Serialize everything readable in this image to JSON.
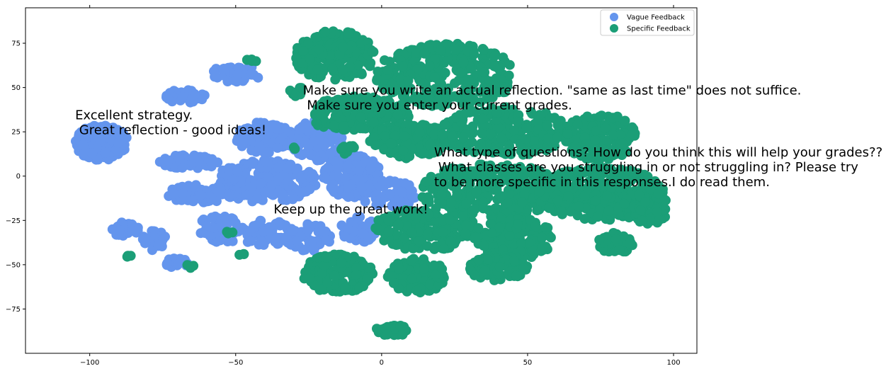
{
  "chart_data": {
    "type": "scatter",
    "title": "",
    "xlabel": "",
    "ylabel": "",
    "xlim": [
      -122,
      108
    ],
    "ylim": [
      -100,
      95
    ],
    "x_ticks": [
      -100,
      -50,
      0,
      50,
      100
    ],
    "x_tick_labels": [
      "−100",
      "−50",
      "0",
      "50",
      "100"
    ],
    "y_ticks": [
      -75,
      -50,
      -25,
      0,
      25,
      50,
      75
    ],
    "y_tick_labels": [
      "−75",
      "−50",
      "−25",
      "0",
      "25",
      "50",
      "75"
    ],
    "grid": false,
    "legend_position": "top-right",
    "series": [
      {
        "name": "Vague Feedback",
        "color": "#6495ed",
        "clusters": [
          {
            "cx": -96,
            "cy": 19,
            "rx": 9,
            "ry": 10,
            "n": 170
          },
          {
            "cx": -67,
            "cy": 45,
            "rx": 7,
            "ry": 4,
            "n": 40
          },
          {
            "cx": -50,
            "cy": 58,
            "rx": 9,
            "ry": 5,
            "n": 40
          },
          {
            "cx": -66,
            "cy": 8,
            "rx": 10,
            "ry": 4,
            "n": 55
          },
          {
            "cx": -40,
            "cy": 22,
            "rx": 10,
            "ry": 9,
            "n": 120
          },
          {
            "cx": -40,
            "cy": -3,
            "rx": 18,
            "ry": 12,
            "n": 220
          },
          {
            "cx": -62,
            "cy": -10,
            "rx": 12,
            "ry": 5,
            "n": 70
          },
          {
            "cx": -55,
            "cy": -30,
            "rx": 9,
            "ry": 8,
            "n": 55
          },
          {
            "cx": -40,
            "cy": -32,
            "rx": 10,
            "ry": 7,
            "n": 60
          },
          {
            "cx": -88,
            "cy": -30,
            "rx": 5,
            "ry": 4,
            "n": 30
          },
          {
            "cx": -78,
            "cy": -36,
            "rx": 4,
            "ry": 6,
            "n": 30
          },
          {
            "cx": -70,
            "cy": -49,
            "rx": 4,
            "ry": 3,
            "n": 25
          },
          {
            "cx": -22,
            "cy": 20,
            "rx": 9,
            "ry": 12,
            "n": 130
          },
          {
            "cx": -10,
            "cy": 0,
            "rx": 10,
            "ry": 12,
            "n": 140
          },
          {
            "cx": -25,
            "cy": -35,
            "rx": 8,
            "ry": 8,
            "n": 60
          },
          {
            "cx": -8,
            "cy": -30,
            "rx": 6,
            "ry": 8,
            "n": 50
          },
          {
            "cx": 2,
            "cy": -10,
            "rx": 10,
            "ry": 8,
            "n": 70
          }
        ]
      },
      {
        "name": "Specific Feedback",
        "color": "#1b9e77",
        "clusters": [
          {
            "cx": -16,
            "cy": 68,
            "rx": 14,
            "ry": 14,
            "n": 180
          },
          {
            "cx": 22,
            "cy": 57,
            "rx": 24,
            "ry": 18,
            "n": 300
          },
          {
            "cx": -8,
            "cy": 35,
            "rx": 18,
            "ry": 10,
            "n": 200
          },
          {
            "cx": 10,
            "cy": 20,
            "rx": 14,
            "ry": 10,
            "n": 160
          },
          {
            "cx": 42,
            "cy": 25,
            "rx": 22,
            "ry": 14,
            "n": 260
          },
          {
            "cx": 75,
            "cy": 22,
            "rx": 12,
            "ry": 14,
            "n": 160
          },
          {
            "cx": 38,
            "cy": -8,
            "rx": 25,
            "ry": 15,
            "n": 300
          },
          {
            "cx": 75,
            "cy": -10,
            "rx": 22,
            "ry": 15,
            "n": 260
          },
          {
            "cx": 92,
            "cy": -18,
            "rx": 6,
            "ry": 10,
            "n": 80
          },
          {
            "cx": 15,
            "cy": -30,
            "rx": 18,
            "ry": 12,
            "n": 220
          },
          {
            "cx": 45,
            "cy": -35,
            "rx": 14,
            "ry": 12,
            "n": 180
          },
          {
            "cx": -15,
            "cy": -55,
            "rx": 12,
            "ry": 11,
            "n": 180
          },
          {
            "cx": 12,
            "cy": -56,
            "rx": 10,
            "ry": 10,
            "n": 120
          },
          {
            "cx": 40,
            "cy": -52,
            "rx": 10,
            "ry": 7,
            "n": 90
          },
          {
            "cx": 4,
            "cy": -87,
            "rx": 6,
            "ry": 3,
            "n": 30
          },
          {
            "cx": 80,
            "cy": -38,
            "rx": 6,
            "ry": 6,
            "n": 40
          },
          {
            "cx": -45,
            "cy": 65,
            "rx": 2,
            "ry": 1,
            "n": 6
          },
          {
            "cx": -29,
            "cy": 48,
            "rx": 3,
            "ry": 3,
            "n": 10
          },
          {
            "cx": -47,
            "cy": -44,
            "rx": 2,
            "ry": 1,
            "n": 3
          },
          {
            "cx": -87,
            "cy": -45,
            "rx": 2,
            "ry": 1,
            "n": 4
          },
          {
            "cx": -66,
            "cy": -51,
            "rx": 2,
            "ry": 1,
            "n": 4
          },
          {
            "cx": -53,
            "cy": -32,
            "rx": 2,
            "ry": 1,
            "n": 4
          },
          {
            "cx": -30,
            "cy": 16,
            "rx": 1,
            "ry": 1,
            "n": 2
          },
          {
            "cx": -12,
            "cy": 15,
            "rx": 3,
            "ry": 3,
            "n": 10
          }
        ]
      }
    ],
    "annotations": [
      {
        "x": -105,
        "y": 32,
        "lines": [
          "Excellent strategy.",
          "  Great reflection - good ideas!"
        ]
      },
      {
        "x": -27,
        "y": 46,
        "lines": [
          "Make sure you write an actual reflection. \"same as last time\" does not suffice.",
          " Make sure you enter your current grades."
        ]
      },
      {
        "x": 18,
        "y": 11,
        "lines": [
          "What type of questions? How do you think this will help your grades??",
          " What classes are you struggling in or not struggling in? Please try",
          "to be more specific in this responses.I do read them."
        ]
      },
      {
        "x": -37,
        "y": -21,
        "lines": [
          "Keep up the great work!"
        ]
      }
    ]
  }
}
